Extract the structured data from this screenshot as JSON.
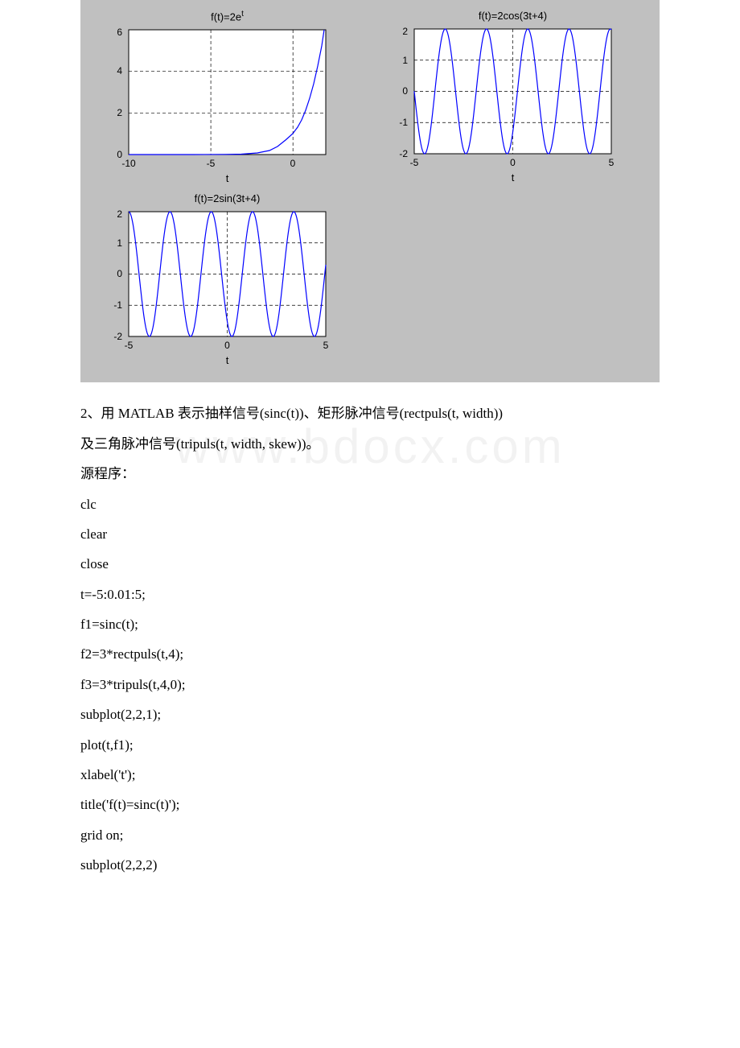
{
  "figure": {
    "background_color": "#c0c0c0",
    "axes_background": "#ffffff",
    "line_color": "#0000ff",
    "line_width": 1.2,
    "grid_color": "#000000",
    "grid_dash": "4,3",
    "tick_fontsize": 12,
    "title_fontsize": 13,
    "xlabel": "t",
    "subplots": [
      {
        "title": "f(t)=2e",
        "title_sup": "t",
        "xlim": [
          -10,
          2
        ],
        "ylim": [
          0,
          6
        ],
        "xticks": [
          -10,
          -5,
          0
        ],
        "yticks": [
          0,
          2,
          4,
          6
        ],
        "function": "2*exp(t)"
      },
      {
        "title": "f(t)=2cos(3t+4)",
        "xlim": [
          -5,
          5
        ],
        "ylim": [
          -2,
          2
        ],
        "xticks": [
          -5,
          0,
          5
        ],
        "yticks": [
          -2,
          -1,
          0,
          1,
          2
        ],
        "function": "2*cos(3t+4)"
      },
      {
        "title": "f(t)=2sin(3t+4)",
        "xlim": [
          -5,
          5
        ],
        "ylim": [
          -2,
          2
        ],
        "xticks": [
          -5,
          0,
          5
        ],
        "yticks": [
          -2,
          -1,
          0,
          1,
          2
        ],
        "function": "2*sin(3t+4)"
      }
    ]
  },
  "text": {
    "q2": "2、用 MATLAB 表示抽样信号(sinc(t))、矩形脉冲信号(rectpuls(t, width))",
    "q2b": "及三角脉冲信号(tripuls(t, width, skew))。",
    "src_label": "源程序：",
    "code": [
      "clc",
      "clear",
      "close",
      "t=-5:0.01:5;",
      "f1=sinc(t);",
      "f2=3*rectpuls(t,4);",
      "f3=3*tripuls(t,4,0);",
      "subplot(2,2,1);",
      "plot(t,f1);",
      "xlabel('t');",
      "title('f(t)=sinc(t)');",
      "grid on;",
      "subplot(2,2,2)"
    ]
  },
  "watermark": "www.bdocx.com"
}
